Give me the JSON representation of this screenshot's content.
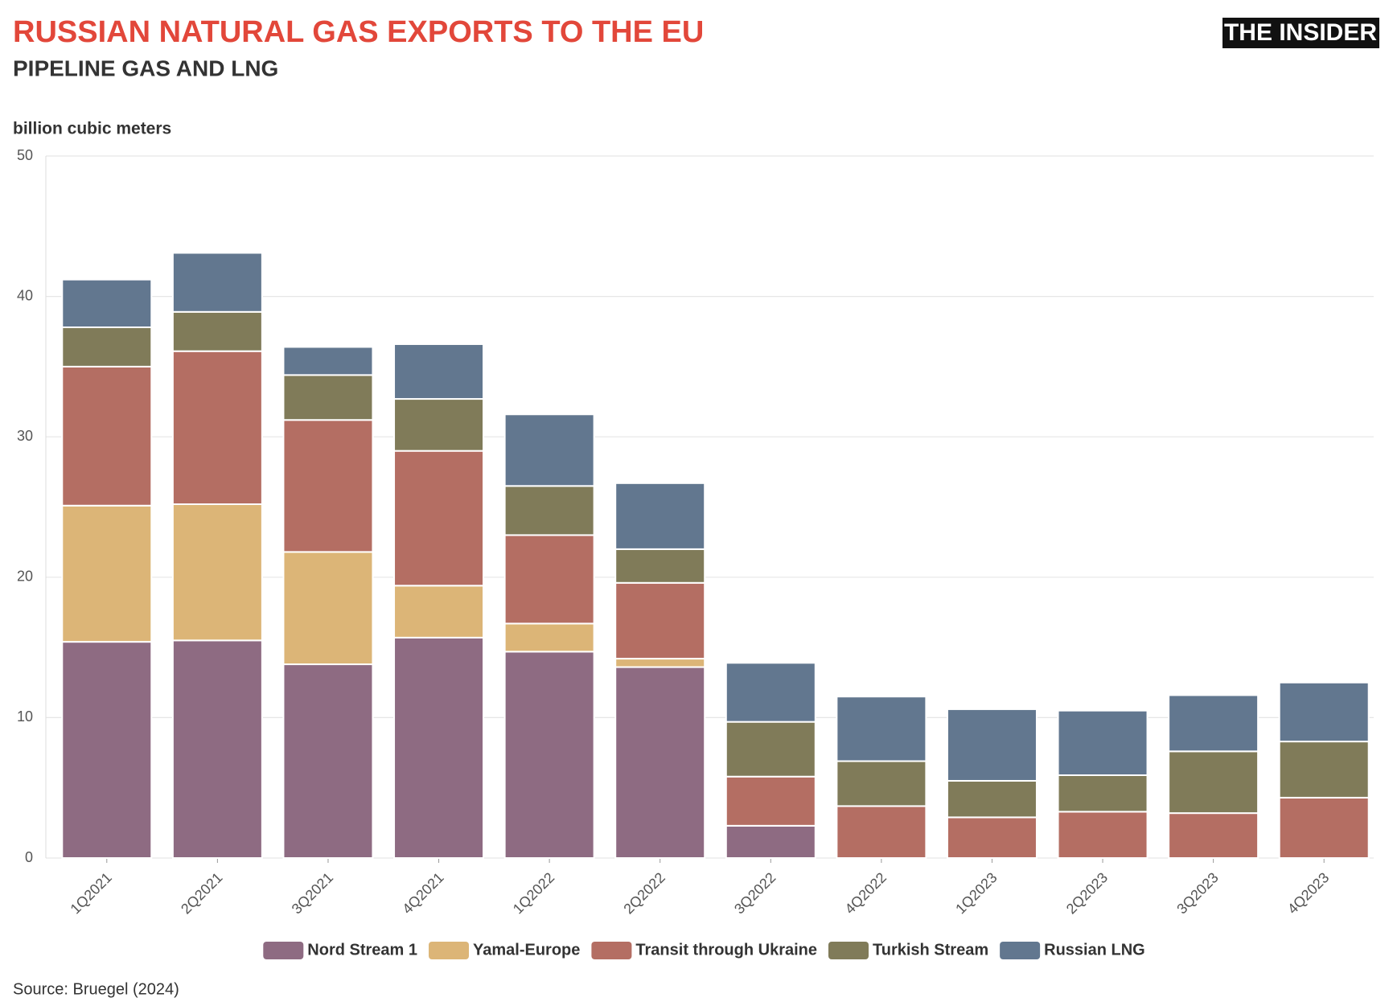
{
  "chart_data": {
    "type": "stacked_bar",
    "title": "RUSSIAN NATURAL GAS EXPORTS TO THE EU",
    "subtitle": "PIPELINE GAS AND LNG",
    "logo": "THE INSIDER",
    "y_axis_label": "billion cubic meters",
    "source": "Source: Bruegel (2024)",
    "categories": [
      "1Q2021",
      "2Q2021",
      "3Q2021",
      "4Q2021",
      "1Q2022",
      "2Q2022",
      "3Q2022",
      "4Q2022",
      "1Q2023",
      "2Q2023",
      "3Q2023",
      "4Q2023"
    ],
    "series": [
      {
        "name": "Nord Stream 1",
        "color": "#8e6b82",
        "values": [
          15.4,
          15.5,
          13.8,
          15.7,
          14.7,
          13.6,
          2.3,
          0,
          0,
          0,
          0,
          0
        ]
      },
      {
        "name": "Yamal-Europe",
        "color": "#dcb577",
        "values": [
          9.7,
          9.7,
          8.0,
          3.7,
          2.0,
          0.6,
          0,
          0,
          0,
          0,
          0,
          0
        ]
      },
      {
        "name": "Transit through Ukraine",
        "color": "#b46e63",
        "values": [
          9.9,
          10.9,
          9.4,
          9.6,
          6.3,
          5.4,
          3.5,
          3.7,
          2.9,
          3.3,
          3.2,
          4.3
        ]
      },
      {
        "name": "Turkish Stream",
        "color": "#807b59",
        "values": [
          2.8,
          2.8,
          3.2,
          3.7,
          3.5,
          2.4,
          3.9,
          3.2,
          2.6,
          2.6,
          4.4,
          4.0
        ]
      },
      {
        "name": "Russian LNG",
        "color": "#62778f",
        "values": [
          3.4,
          4.2,
          2.0,
          3.9,
          5.1,
          4.7,
          4.2,
          4.6,
          5.1,
          4.6,
          4.0,
          4.2
        ]
      }
    ],
    "ylim": [
      0,
      50
    ],
    "yticks": [
      0,
      10,
      20,
      30,
      40,
      50
    ],
    "grid": true
  }
}
